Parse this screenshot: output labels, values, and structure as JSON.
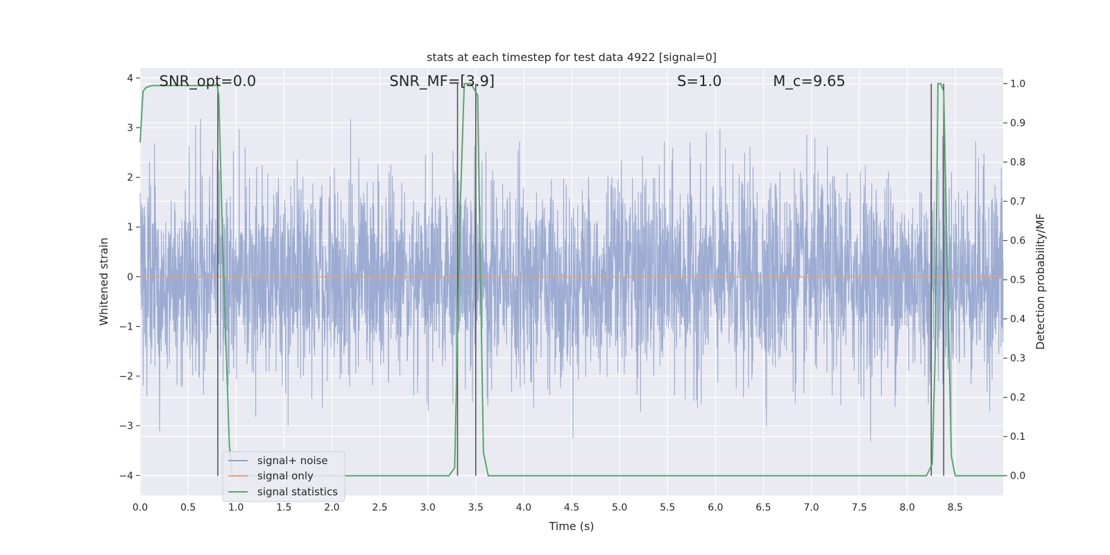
{
  "chart_data": {
    "type": "line",
    "title": "stats at each timestep for test data 4922 [signal=0]",
    "xlabel": "Time (s)",
    "ylabel": "Whitened strain",
    "y2label": "Detection probability/MF",
    "xlim": [
      0.0,
      9.0
    ],
    "ylim": [
      -4.4,
      4.2
    ],
    "y2lim": [
      -0.05,
      1.04
    ],
    "xticks": [
      "0.0",
      "0.5",
      "1.0",
      "1.5",
      "2.0",
      "2.5",
      "3.0",
      "3.5",
      "4.0",
      "4.5",
      "5.0",
      "5.5",
      "6.0",
      "6.5",
      "7.0",
      "7.5",
      "8.0",
      "8.5"
    ],
    "yticks": [
      "4",
      "3",
      "2",
      "1",
      "0",
      "−1",
      "−2",
      "−3",
      "−4"
    ],
    "y2ticks": [
      "1.0",
      "0.9",
      "0.8",
      "0.7",
      "0.6",
      "0.5",
      "0.4",
      "0.3",
      "0.2",
      "0.1",
      "0.0"
    ],
    "grid": true,
    "legend_position": "bottom-left",
    "annotations": [
      {
        "text": "SNR_opt=0.0",
        "x": 0.2
      },
      {
        "text": "SNR_MF=[3.9]",
        "x": 2.6
      },
      {
        "text": "S=1.0",
        "x": 5.6
      },
      {
        "text": "M_c=9.65",
        "x": 6.6
      }
    ],
    "series": [
      {
        "name": "signal+ noise",
        "axis": "left",
        "color": "#8da0cb",
        "noise_std": 1.0,
        "noise_range": [
          -4.0,
          3.85
        ],
        "t_range": [
          0.0,
          9.0
        ]
      },
      {
        "name": "signal only",
        "axis": "left",
        "color": "#e5a37a",
        "x": [
          0.0,
          9.0
        ],
        "y": [
          0.0,
          0.0
        ]
      },
      {
        "name": "signal statistics",
        "axis": "right",
        "color": "#55a868",
        "x": [
          0.0,
          0.03,
          0.06,
          0.12,
          0.2,
          0.5,
          0.78,
          0.8,
          0.82,
          0.86,
          0.9,
          0.93,
          0.96,
          3.0,
          3.22,
          3.28,
          3.34,
          3.38,
          3.4,
          3.45,
          3.52,
          3.55,
          3.58,
          3.63,
          8.2,
          8.26,
          8.29,
          8.32,
          8.35,
          8.38,
          8.42,
          8.46,
          8.5,
          9.0
        ],
        "y": [
          0.85,
          0.98,
          0.99,
          0.995,
          0.995,
          0.995,
          0.995,
          1.0,
          0.97,
          0.6,
          0.3,
          0.08,
          0.0,
          0.0,
          0.0,
          0.02,
          0.7,
          1.0,
          1.0,
          1.0,
          0.97,
          0.5,
          0.06,
          0.0,
          0.0,
          0.03,
          0.3,
          1.0,
          1.0,
          0.98,
          0.5,
          0.05,
          0.0,
          0.0
        ]
      },
      {
        "name": "markers",
        "axis": "right",
        "color": "#555555",
        "x": [
          0.81,
          3.31,
          3.5,
          8.25,
          8.38
        ],
        "ytop": [
          1.0,
          1.0,
          1.0,
          1.0,
          1.0
        ]
      }
    ]
  }
}
